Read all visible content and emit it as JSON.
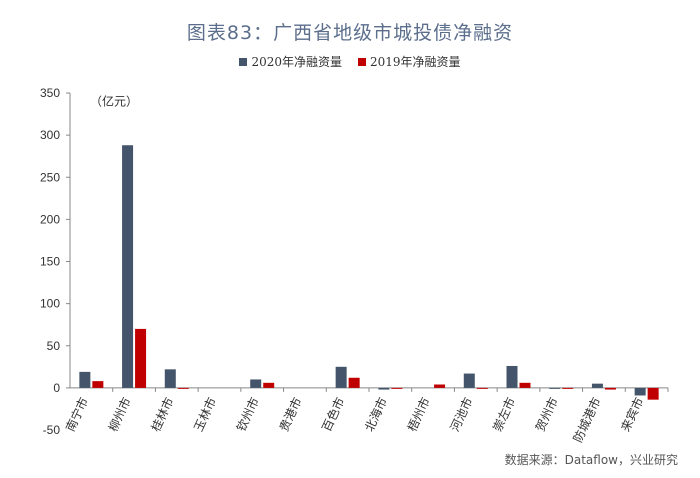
{
  "chart_data": {
    "type": "bar",
    "title": "图表83：广西省地级市城投债净融资",
    "unit_label": "（亿元）",
    "categories": [
      "南宁市",
      "柳州市",
      "桂林市",
      "玉林市",
      "钦州市",
      "贵港市",
      "百色市",
      "北海市",
      "梧州市",
      "河池市",
      "崇左市",
      "贺州市",
      "防城港市",
      "来宾市"
    ],
    "series": [
      {
        "name": "2020年净融资量",
        "color": "#44546a",
        "values": [
          19,
          288,
          22,
          0,
          10,
          0,
          25,
          -2,
          0,
          17,
          26,
          -1,
          5,
          -9
        ]
      },
      {
        "name": "2019年净融资量",
        "color": "#c00000",
        "values": [
          8,
          70,
          -1,
          0,
          6,
          0,
          12,
          -1,
          4,
          -1,
          6,
          -1,
          -2,
          -14
        ]
      }
    ],
    "y_ticks": [
      "350",
      "300",
      "250",
      "200",
      "150",
      "100",
      "50",
      "0",
      "-50"
    ],
    "ylim": [
      -50,
      350
    ],
    "grid": false,
    "legend_position": "top-center"
  },
  "source": "数据来源：Dataflow，兴业研究"
}
